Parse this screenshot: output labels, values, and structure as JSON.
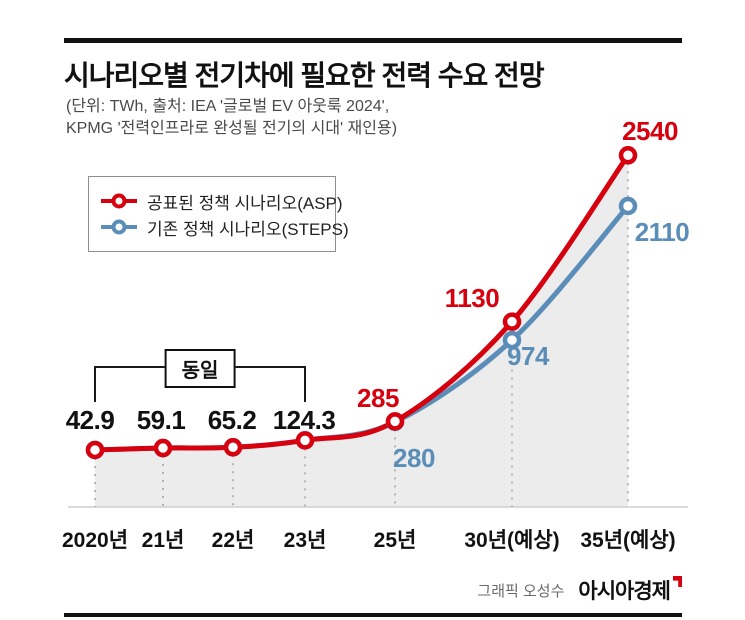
{
  "header": {
    "title": "시나리오별 전기차에 필요한 전력 수요 전망",
    "subtitle_line1": "(단위: TWh, 출처: IEA '글로벌 EV 아웃룩 2024',",
    "subtitle_line2": "KPMG '전력인프라로 완성될 전기의 시대' 재인용)"
  },
  "chart_data": {
    "type": "line",
    "unit": "TWh",
    "categories": [
      "2020년",
      "21년",
      "22년",
      "23년",
      "25년",
      "30년(예상)",
      "35년(예상)"
    ],
    "series": [
      {
        "name": "공표된 정책 시나리오(ASP)",
        "color": "#d6000f",
        "values": [
          42.9,
          59.1,
          65.2,
          124.3,
          285,
          1130,
          2540
        ]
      },
      {
        "name": "기존 정책 시나리오(STEPS)",
        "color": "#5b8db9",
        "values": [
          42.9,
          59.1,
          65.2,
          124.3,
          280,
          974,
          2110
        ]
      }
    ],
    "ylim": [
      0,
      2700
    ],
    "grid": "dashed-vertical-per-category",
    "legend_position": "top-left",
    "area_fill_color": "#ececec",
    "annotations": {
      "same_label": "동일",
      "same_span": [
        "2020년",
        "23년"
      ]
    }
  },
  "point_labels": {
    "p2020": "42.9",
    "p21": "59.1",
    "p22": "65.2",
    "p23": "124.3",
    "asp25": "285",
    "steps25": "280",
    "asp30": "1130",
    "steps30": "974",
    "asp35": "2540",
    "steps35": "2110"
  },
  "footer": {
    "credit": "그래픽 오성수",
    "brand": "아시아경제"
  }
}
